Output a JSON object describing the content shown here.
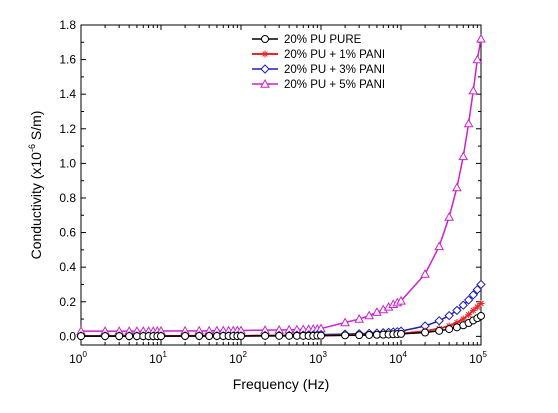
{
  "chart_data": {
    "type": "line",
    "xlabel": "Frequency (Hz)",
    "ylabel_main": "Conductivity (x10",
    "ylabel_sup": "-6",
    "ylabel_tail": " S/m)",
    "x_scale": "log",
    "xlim": [
      1,
      100000
    ],
    "ylim": [
      -0.05,
      1.8
    ],
    "x_tick_labels": [
      {
        "base": "10",
        "exp": "0"
      },
      {
        "base": "10",
        "exp": "1"
      },
      {
        "base": "10",
        "exp": "2"
      },
      {
        "base": "10",
        "exp": "3"
      },
      {
        "base": "10",
        "exp": "4"
      },
      {
        "base": "10",
        "exp": "5"
      }
    ],
    "y_ticks": [
      "0.0",
      "0.2",
      "0.4",
      "0.6",
      "0.8",
      "1.0",
      "1.2",
      "1.4",
      "1.6",
      "1.8"
    ],
    "grid": false,
    "legend_position": "top-center",
    "x": [
      1,
      2,
      3,
      4,
      5,
      6,
      7,
      8,
      9,
      10,
      20,
      30,
      40,
      50,
      60,
      70,
      80,
      90,
      100,
      200,
      300,
      400,
      500,
      600,
      700,
      800,
      900,
      1000,
      2000,
      3000,
      4000,
      5000,
      6000,
      7000,
      8000,
      9000,
      10000,
      20000,
      30000,
      40000,
      50000,
      60000,
      70000,
      80000,
      90000,
      100000
    ],
    "series": [
      {
        "name": "20% PU PURE",
        "color": "#000000",
        "marker": "circle",
        "values": [
          0.001,
          0.001,
          0.001,
          0.001,
          0.001,
          0.001,
          0.001,
          0.001,
          0.001,
          0.001,
          0.002,
          0.002,
          0.002,
          0.002,
          0.002,
          0.002,
          0.002,
          0.002,
          0.002,
          0.003,
          0.003,
          0.003,
          0.003,
          0.003,
          0.003,
          0.003,
          0.004,
          0.004,
          0.006,
          0.007,
          0.008,
          0.009,
          0.01,
          0.011,
          0.012,
          0.013,
          0.014,
          0.022,
          0.032,
          0.042,
          0.052,
          0.064,
          0.077,
          0.092,
          0.105,
          0.118
        ]
      },
      {
        "name": "20% PU + 1% PANI",
        "color": "#e8262c",
        "marker": "asterisk",
        "values": [
          0.002,
          0.002,
          0.002,
          0.002,
          0.002,
          0.002,
          0.002,
          0.002,
          0.002,
          0.002,
          0.003,
          0.003,
          0.003,
          0.003,
          0.003,
          0.003,
          0.003,
          0.003,
          0.003,
          0.004,
          0.004,
          0.004,
          0.004,
          0.004,
          0.005,
          0.005,
          0.005,
          0.005,
          0.007,
          0.008,
          0.009,
          0.01,
          0.011,
          0.012,
          0.013,
          0.014,
          0.015,
          0.03,
          0.045,
          0.06,
          0.08,
          0.1,
          0.125,
          0.15,
          0.17,
          0.19
        ]
      },
      {
        "name": "20% PU + 3% PANI",
        "color": "#1f1fb4",
        "marker": "diamond",
        "values": [
          0.002,
          0.002,
          0.002,
          0.002,
          0.002,
          0.002,
          0.002,
          0.002,
          0.002,
          0.002,
          0.003,
          0.003,
          0.003,
          0.003,
          0.003,
          0.003,
          0.003,
          0.003,
          0.003,
          0.005,
          0.006,
          0.006,
          0.007,
          0.007,
          0.008,
          0.008,
          0.009,
          0.01,
          0.013,
          0.015,
          0.017,
          0.019,
          0.021,
          0.023,
          0.025,
          0.027,
          0.03,
          0.06,
          0.09,
          0.12,
          0.15,
          0.18,
          0.21,
          0.24,
          0.27,
          0.3
        ]
      },
      {
        "name": "20% PU + 5% PANI",
        "color": "#cc22cc",
        "marker": "triangle",
        "values": [
          0.03,
          0.03,
          0.03,
          0.03,
          0.03,
          0.03,
          0.03,
          0.03,
          0.031,
          0.031,
          0.032,
          0.032,
          0.032,
          0.033,
          0.033,
          0.033,
          0.033,
          0.034,
          0.034,
          0.036,
          0.037,
          0.038,
          0.039,
          0.04,
          0.041,
          0.042,
          0.043,
          0.045,
          0.08,
          0.1,
          0.12,
          0.14,
          0.155,
          0.17,
          0.185,
          0.195,
          0.205,
          0.36,
          0.52,
          0.69,
          0.86,
          1.04,
          1.23,
          1.42,
          1.6,
          1.72
        ]
      }
    ]
  }
}
